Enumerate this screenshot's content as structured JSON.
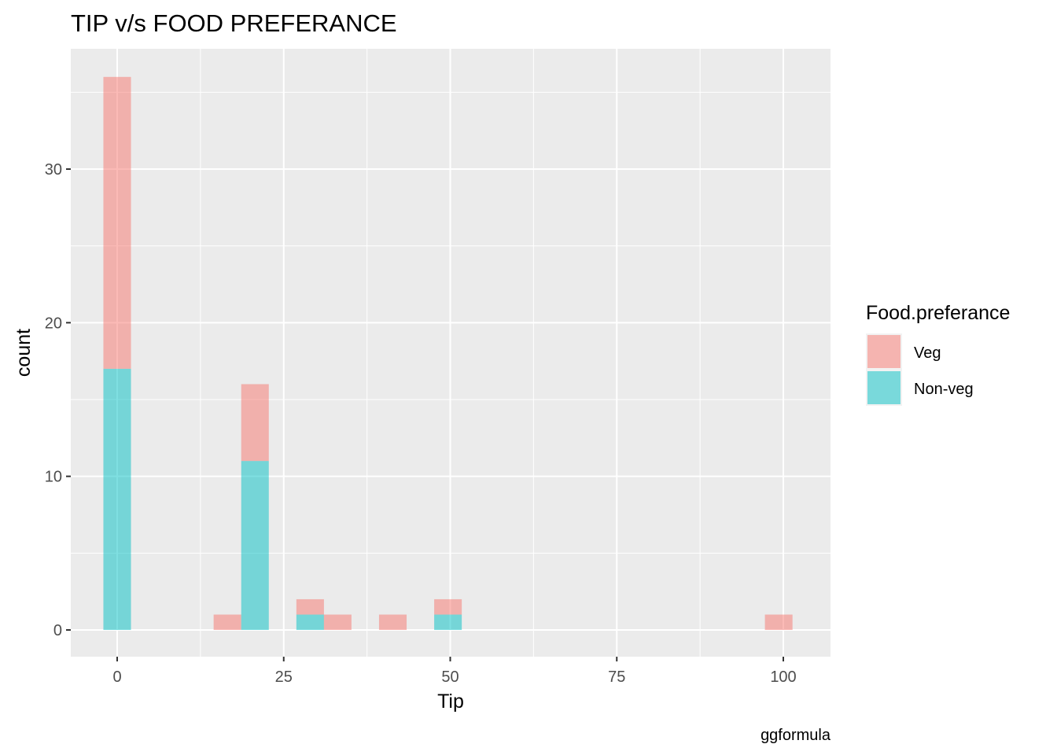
{
  "chart_data": {
    "type": "bar",
    "subtype": "stacked-histogram",
    "title": "TIP v/s FOOD PREFERANCE",
    "xlabel": "Tip",
    "ylabel": "count",
    "caption": "ggformula",
    "xlim": [
      -7,
      107
    ],
    "ylim": [
      0,
      36
    ],
    "x_ticks": [
      0,
      25,
      50,
      75,
      100
    ],
    "y_ticks": [
      0,
      10,
      20,
      30
    ],
    "grid": true,
    "legend": {
      "title": "Food.preferance",
      "position": "right",
      "entries": [
        "Veg",
        "Non-veg"
      ]
    },
    "bin_width": 4.14,
    "x": [
      0,
      16.55,
      20.69,
      28.97,
      33.1,
      41.38,
      49.66,
      99.31
    ],
    "series": [
      {
        "name": "Veg",
        "color": "#f8766d",
        "values": [
          19,
          1,
          5,
          1,
          1,
          1,
          1,
          1
        ]
      },
      {
        "name": "Non-veg",
        "color": "#00bfc4",
        "values": [
          17,
          0,
          11,
          1,
          0,
          0,
          1,
          0
        ]
      }
    ],
    "bar_alpha": 0.5,
    "panel_background": "#ebebeb",
    "grid_color": "#ffffff"
  }
}
